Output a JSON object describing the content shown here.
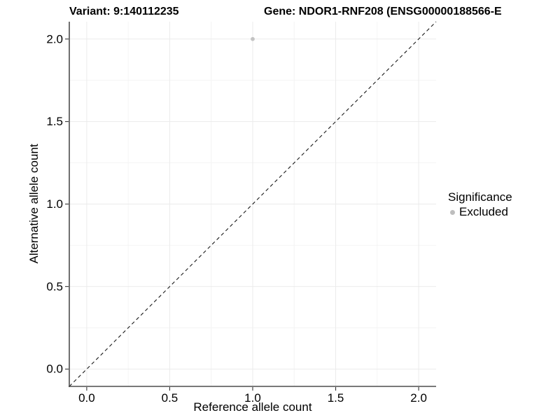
{
  "figure": {
    "title_variant": "Variant: 9:140112235",
    "title_gene": "Gene: NDOR1-RNF208 (ENSG00000188566-E"
  },
  "chart_data": {
    "type": "scatter",
    "title_left": "Variant: 9:140112235",
    "title_right": "Gene: NDOR1-RNF208 (ENSG00000188566-E",
    "xlabel": "Reference allele count",
    "ylabel": "Alternative allele count",
    "xlim": [
      -0.105,
      2.105
    ],
    "ylim": [
      -0.105,
      2.105
    ],
    "x_ticks": [
      0,
      0.5,
      1,
      1.5,
      2
    ],
    "y_ticks": [
      0,
      0.5,
      1,
      1.5,
      2
    ],
    "x_tick_labels": [
      "0.0",
      "0.5",
      "1.0",
      "1.5",
      "2.0"
    ],
    "y_tick_labels": [
      "0.0",
      "0.5",
      "1.0",
      "1.5",
      "2.0"
    ],
    "x_minor_ticks": [
      0.25,
      0.75,
      1.25,
      1.75
    ],
    "y_minor_ticks": [
      0.25,
      0.75,
      1.25,
      1.75
    ],
    "grid": "major+minor",
    "series": [
      {
        "name": "Excluded",
        "color": "#bebebe",
        "points": [
          {
            "x": 1.0,
            "y": 2.0
          }
        ]
      }
    ],
    "identity_line": {
      "style": "dashed",
      "color": "#1a1a1a",
      "from": -0.105,
      "to": 2.105
    },
    "legend": {
      "position": "right",
      "title": "Significance",
      "items": [
        {
          "label": "Excluded",
          "marker": "circle",
          "color": "#bebebe"
        }
      ]
    },
    "colors": {
      "background": "#ffffff",
      "grid_major": "#ebebeb",
      "grid_minor": "#f4f4f4",
      "axis_line": "#4d4d4d",
      "tick_mark": "#333333",
      "tick_label": "#000000",
      "point": "#c3c3c3"
    }
  }
}
